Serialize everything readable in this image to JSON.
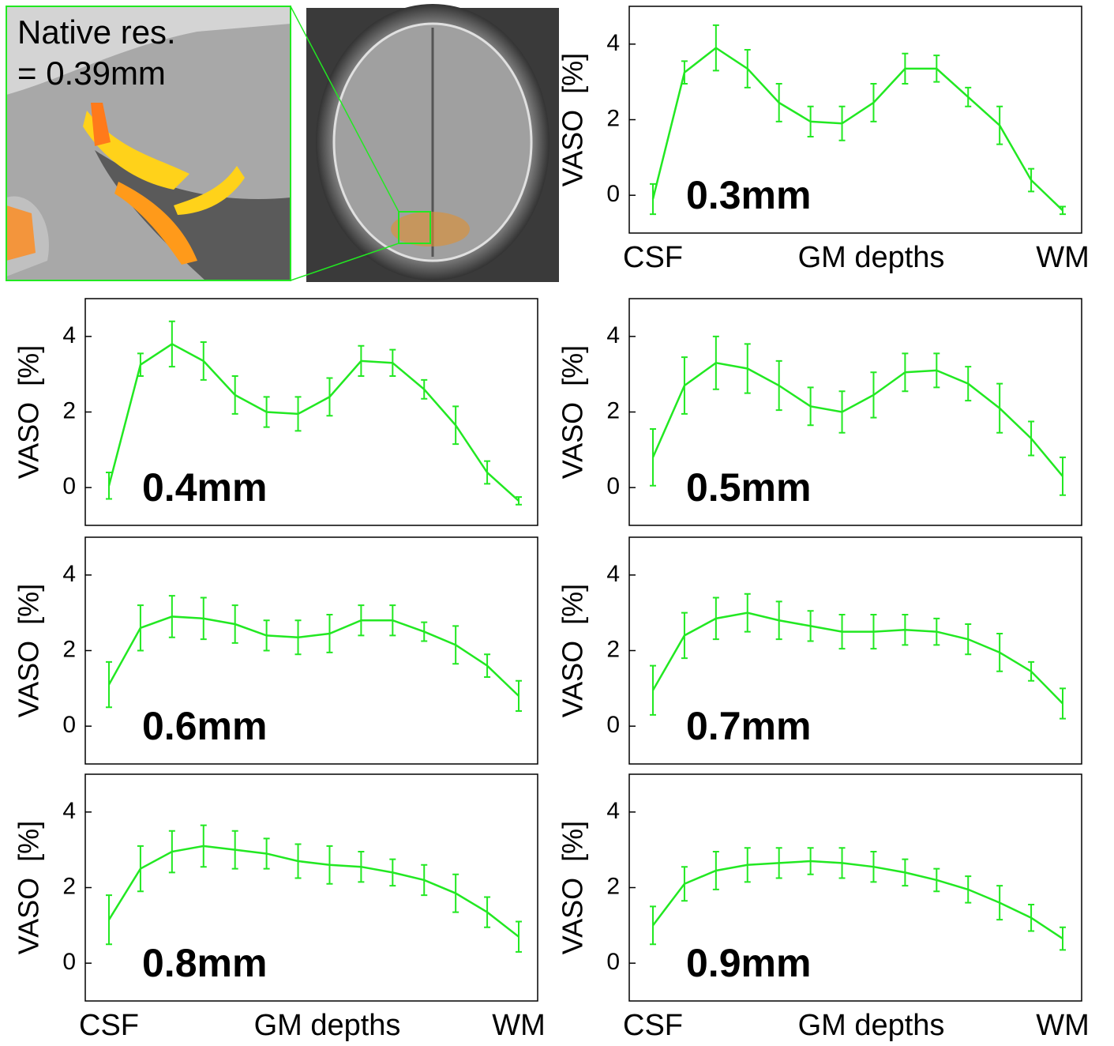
{
  "figure": {
    "inset_caption": [
      "Native res.",
      "= 0.39mm"
    ]
  },
  "chart_data": [
    {
      "type": "line",
      "annotation": "0.3mm",
      "ylabel": "VASO  [%]",
      "x_labels": [
        "CSF",
        "GM depths",
        "WM"
      ],
      "color": "#22e822",
      "ylim": [
        -1,
        5
      ],
      "yticks": [
        0,
        2,
        4
      ],
      "values": [
        -0.1,
        3.25,
        3.9,
        3.35,
        2.45,
        1.95,
        1.9,
        2.45,
        3.35,
        3.35,
        2.6,
        1.85,
        0.4,
        -0.4
      ],
      "errors": [
        0.4,
        0.3,
        0.6,
        0.5,
        0.5,
        0.4,
        0.45,
        0.5,
        0.4,
        0.35,
        0.25,
        0.5,
        0.3,
        0.1
      ]
    },
    {
      "type": "line",
      "annotation": "0.4mm",
      "ylabel": "VASO  [%]",
      "color": "#22e822",
      "ylim": [
        -1,
        5
      ],
      "yticks": [
        0,
        2,
        4
      ],
      "values": [
        0.05,
        3.25,
        3.8,
        3.35,
        2.45,
        2.0,
        1.95,
        2.4,
        3.35,
        3.3,
        2.6,
        1.65,
        0.4,
        -0.35
      ],
      "errors": [
        0.35,
        0.3,
        0.6,
        0.5,
        0.5,
        0.4,
        0.45,
        0.5,
        0.4,
        0.35,
        0.25,
        0.5,
        0.3,
        0.1
      ]
    },
    {
      "type": "line",
      "annotation": "0.5mm",
      "ylabel": "VASO  [%]",
      "color": "#22e822",
      "ylim": [
        -1,
        5
      ],
      "yticks": [
        0,
        2,
        4
      ],
      "values": [
        0.8,
        2.7,
        3.3,
        3.15,
        2.7,
        2.15,
        2.0,
        2.45,
        3.05,
        3.1,
        2.75,
        2.1,
        1.3,
        0.3
      ],
      "errors": [
        0.75,
        0.75,
        0.7,
        0.65,
        0.65,
        0.5,
        0.55,
        0.6,
        0.5,
        0.45,
        0.45,
        0.65,
        0.45,
        0.5
      ]
    },
    {
      "type": "line",
      "annotation": "0.6mm",
      "ylabel": "VASO  [%]",
      "color": "#22e822",
      "ylim": [
        -1,
        5
      ],
      "yticks": [
        0,
        2,
        4
      ],
      "values": [
        1.1,
        2.6,
        2.9,
        2.85,
        2.7,
        2.4,
        2.35,
        2.45,
        2.8,
        2.8,
        2.5,
        2.15,
        1.6,
        0.8
      ],
      "errors": [
        0.6,
        0.6,
        0.55,
        0.55,
        0.5,
        0.4,
        0.45,
        0.5,
        0.4,
        0.4,
        0.25,
        0.5,
        0.3,
        0.4
      ]
    },
    {
      "type": "line",
      "annotation": "0.7mm",
      "ylabel": "VASO  [%]",
      "color": "#22e822",
      "ylim": [
        -1,
        5
      ],
      "yticks": [
        0,
        2,
        4
      ],
      "values": [
        0.95,
        2.4,
        2.85,
        3.0,
        2.8,
        2.65,
        2.5,
        2.5,
        2.55,
        2.5,
        2.3,
        1.95,
        1.45,
        0.6
      ],
      "errors": [
        0.65,
        0.6,
        0.55,
        0.5,
        0.5,
        0.4,
        0.45,
        0.45,
        0.4,
        0.35,
        0.4,
        0.5,
        0.25,
        0.4
      ]
    },
    {
      "type": "line",
      "annotation": "0.8mm",
      "ylabel": "VASO  [%]",
      "x_labels": [
        "CSF",
        "GM depths",
        "WM"
      ],
      "color": "#22e822",
      "ylim": [
        -1,
        5
      ],
      "yticks": [
        0,
        2,
        4
      ],
      "values": [
        1.15,
        2.5,
        2.95,
        3.1,
        3.0,
        2.9,
        2.7,
        2.6,
        2.55,
        2.4,
        2.2,
        1.85,
        1.35,
        0.7
      ],
      "errors": [
        0.65,
        0.6,
        0.55,
        0.55,
        0.5,
        0.4,
        0.45,
        0.5,
        0.4,
        0.35,
        0.4,
        0.5,
        0.4,
        0.4
      ]
    },
    {
      "type": "line",
      "annotation": "0.9mm",
      "ylabel": "VASO  [%]",
      "x_labels": [
        "CSF",
        "GM depths",
        "WM"
      ],
      "color": "#22e822",
      "ylim": [
        -1,
        5
      ],
      "yticks": [
        0,
        2,
        4
      ],
      "values": [
        1.0,
        2.1,
        2.45,
        2.6,
        2.65,
        2.7,
        2.65,
        2.55,
        2.4,
        2.2,
        1.95,
        1.6,
        1.2,
        0.65
      ],
      "errors": [
        0.5,
        0.45,
        0.5,
        0.45,
        0.4,
        0.35,
        0.4,
        0.4,
        0.35,
        0.3,
        0.35,
        0.45,
        0.35,
        0.3
      ]
    }
  ]
}
